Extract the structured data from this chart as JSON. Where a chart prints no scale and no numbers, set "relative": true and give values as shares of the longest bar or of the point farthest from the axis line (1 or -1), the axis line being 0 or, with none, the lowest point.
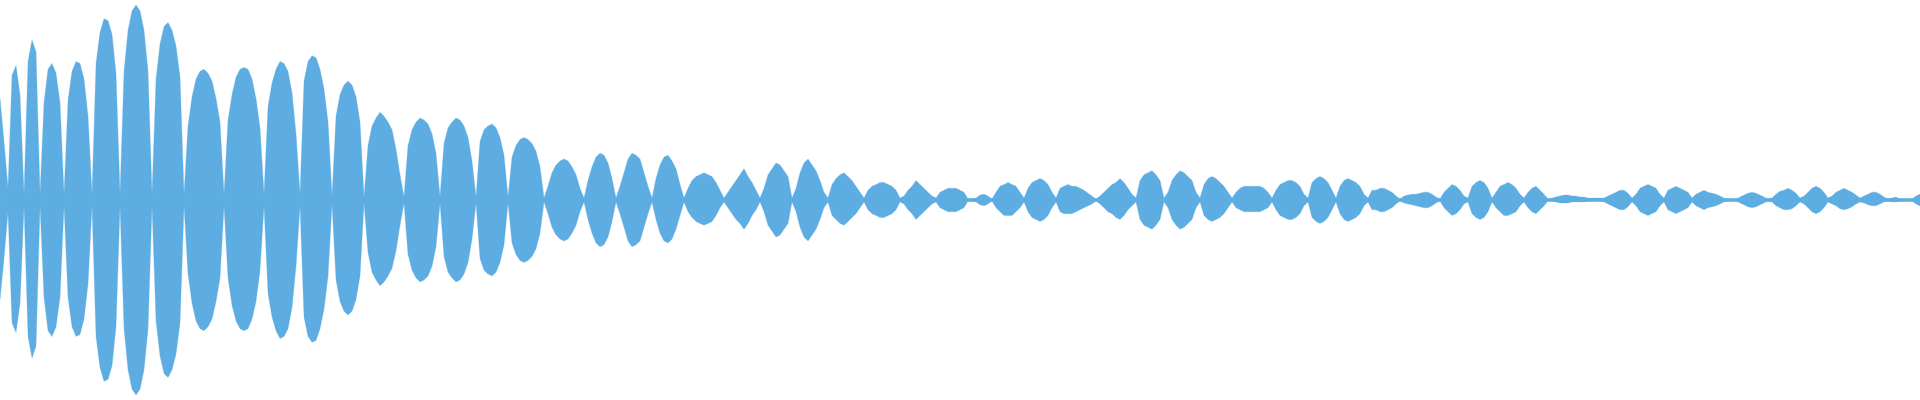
{
  "chart_data": {
    "type": "area",
    "relative": true,
    "ref_lines": [
      {
        "axis": "y",
        "value": 0,
        "color": "#5dade2"
      }
    ],
    "categories": [
      null,
      null,
      null,
      null,
      null,
      null,
      null,
      null,
      null,
      null,
      null,
      null,
      null,
      null,
      null,
      null,
      null,
      null,
      null,
      null,
      null,
      null,
      null,
      null,
      null,
      null,
      null,
      null,
      null,
      null,
      null,
      null,
      null,
      null,
      null,
      null,
      null,
      null,
      null,
      null,
      null,
      null,
      null,
      null,
      null,
      null,
      null,
      null,
      null,
      null,
      null,
      null,
      null,
      null,
      null,
      null,
      null,
      null,
      null,
      null,
      null,
      null,
      null,
      null,
      null,
      null,
      null,
      null,
      null,
      null,
      null,
      null,
      null,
      null,
      null,
      null,
      null,
      null,
      null,
      null,
      null,
      null,
      null,
      null,
      null,
      null,
      null,
      null,
      null,
      null,
      null,
      null,
      null,
      null,
      null,
      null,
      null,
      null,
      null,
      null,
      null,
      null,
      null,
      null,
      null,
      null,
      null,
      null,
      null,
      null,
      null,
      null,
      null,
      null,
      null,
      null,
      null,
      null,
      null,
      null,
      null,
      null,
      null,
      null,
      null,
      null,
      null,
      null,
      null,
      null,
      null,
      null,
      null,
      null,
      null,
      null,
      null,
      null,
      null,
      null,
      null,
      null,
      null,
      null,
      null,
      null,
      null,
      null,
      null,
      null,
      null,
      null,
      null,
      null,
      null,
      null,
      null,
      null,
      null,
      null,
      null,
      null,
      null,
      null,
      null,
      null,
      null,
      null,
      null,
      null,
      null,
      null,
      null,
      null,
      null,
      null,
      null,
      null,
      null,
      null,
      null,
      null,
      null,
      null,
      null,
      null,
      null,
      null,
      null,
      null,
      null,
      null,
      null,
      null,
      null,
      null,
      null,
      null,
      null,
      null,
      null,
      null,
      null,
      null,
      null,
      null,
      null,
      null,
      null,
      null,
      null,
      null,
      null,
      null,
      null,
      null,
      null,
      null,
      null,
      null,
      null,
      null,
      null,
      null,
      null,
      null,
      null,
      null,
      null,
      null,
      null,
      null,
      null,
      null,
      null,
      null,
      null,
      null,
      null,
      null,
      null,
      null,
      null,
      null,
      null,
      null,
      null,
      null,
      null,
      null,
      null,
      null,
      null,
      null,
      null,
      null,
      null,
      null,
      null,
      null,
      null,
      null,
      null,
      null,
      null,
      null,
      null,
      null,
      null,
      null,
      null,
      null,
      null,
      null,
      null,
      null,
      null,
      null,
      null,
      null,
      null,
      null,
      null,
      null,
      null,
      null,
      null,
      null,
      null,
      null,
      null,
      null,
      null,
      null,
      null,
      null,
      null,
      null,
      null,
      null,
      null,
      null,
      null,
      null,
      null,
      null,
      null,
      null,
      null,
      null,
      null,
      null,
      null,
      null,
      null,
      null,
      null,
      null,
      null,
      null,
      null,
      null,
      null,
      null,
      null,
      null,
      null,
      null,
      null,
      null,
      null,
      null,
      null,
      null,
      null,
      null,
      null,
      null,
      null,
      null,
      null,
      null,
      null,
      null,
      null,
      null,
      null,
      null,
      null,
      null,
      null,
      null,
      null,
      null,
      null,
      null,
      null,
      null,
      null,
      null,
      null,
      null,
      null,
      null,
      null,
      null,
      null,
      null,
      null,
      null,
      null,
      null,
      null,
      null,
      null,
      null,
      null,
      null,
      null,
      null,
      null,
      null,
      null,
      null,
      null,
      null,
      null,
      null,
      null,
      null,
      null,
      null,
      null,
      null,
      null,
      null,
      null,
      null,
      null,
      null,
      null,
      null,
      null,
      null,
      null,
      null,
      null,
      null,
      null,
      null,
      null,
      null,
      null,
      null,
      null,
      null,
      null,
      null,
      null,
      null,
      null,
      null,
      null,
      null,
      null,
      null,
      null,
      null,
      null,
      null,
      null,
      null,
      null,
      null,
      null,
      null,
      null,
      null,
      null,
      null,
      null,
      null,
      null,
      null,
      null,
      null,
      null,
      null,
      null,
      null,
      null,
      null,
      null,
      null,
      null,
      null,
      null,
      null,
      null,
      null,
      null,
      null,
      null,
      null,
      null,
      null,
      null,
      null,
      null,
      null,
      null,
      null,
      null,
      null,
      null,
      null,
      null,
      null,
      null,
      null,
      null
    ],
    "series": [
      {
        "color": "#5dade2",
        "values": [
          0.52,
          0.3,
          0.06,
          0.64,
          0.69,
          0.54,
          0.03,
          0.71,
          0.82,
          0.76,
          0.03,
          0.5,
          0.67,
          0.7,
          0.65,
          0.5,
          0.03,
          0.51,
          0.66,
          0.71,
          0.7,
          0.62,
          0.43,
          0.03,
          0.7,
          0.86,
          0.93,
          0.92,
          0.85,
          0.65,
          0.03,
          0.66,
          0.87,
          0.97,
          1.0,
          0.97,
          0.87,
          0.66,
          0.03,
          0.62,
          0.8,
          0.89,
          0.91,
          0.87,
          0.79,
          0.63,
          0.03,
          0.38,
          0.53,
          0.62,
          0.66,
          0.67,
          0.65,
          0.61,
          0.52,
          0.4,
          0.03,
          0.41,
          0.54,
          0.63,
          0.67,
          0.68,
          0.67,
          0.62,
          0.52,
          0.37,
          0.03,
          0.48,
          0.6,
          0.67,
          0.71,
          0.7,
          0.66,
          0.55,
          0.34,
          0.03,
          0.61,
          0.71,
          0.74,
          0.73,
          0.67,
          0.57,
          0.4,
          0.02,
          0.43,
          0.54,
          0.59,
          0.61,
          0.59,
          0.53,
          0.4,
          0.015,
          0.28,
          0.38,
          0.42,
          0.45,
          0.43,
          0.4,
          0.36,
          0.26,
          0.13,
          0.015,
          0.28,
          0.36,
          0.4,
          0.42,
          0.41,
          0.39,
          0.34,
          0.24,
          0.015,
          0.29,
          0.37,
          0.4,
          0.42,
          0.41,
          0.38,
          0.32,
          0.2,
          0.015,
          0.3,
          0.36,
          0.38,
          0.39,
          0.37,
          0.32,
          0.23,
          0.015,
          0.22,
          0.28,
          0.31,
          0.32,
          0.31,
          0.29,
          0.25,
          0.17,
          0.01,
          0.07,
          0.14,
          0.18,
          0.2,
          0.21,
          0.2,
          0.17,
          0.13,
          0.06,
          0.01,
          0.1,
          0.17,
          0.22,
          0.24,
          0.23,
          0.19,
          0.11,
          0.01,
          0.07,
          0.14,
          0.21,
          0.24,
          0.23,
          0.21,
          0.14,
          0.07,
          0.01,
          0.11,
          0.18,
          0.22,
          0.23,
          0.2,
          0.16,
          0.08,
          0.01,
          0.06,
          0.1,
          0.12,
          0.13,
          0.14,
          0.13,
          0.12,
          0.09,
          0.05,
          0.01,
          0.04,
          0.07,
          0.1,
          0.13,
          0.16,
          0.12,
          0.09,
          0.05,
          0.01,
          0.06,
          0.13,
          0.16,
          0.19,
          0.18,
          0.15,
          0.12,
          0.01,
          0.06,
          0.14,
          0.19,
          0.21,
          0.18,
          0.15,
          0.1,
          0.04,
          0.01,
          0.08,
          0.11,
          0.13,
          0.14,
          0.12,
          0.1,
          0.07,
          0.04,
          0.01,
          0.05,
          0.07,
          0.08,
          0.09,
          0.09,
          0.08,
          0.07,
          0.05,
          0.01,
          0.02,
          0.05,
          0.07,
          0.1,
          0.08,
          0.06,
          0.04,
          0.02,
          0.01,
          0.04,
          0.05,
          0.06,
          0.06,
          0.06,
          0.05,
          0.04,
          0.005,
          0.005,
          0.01,
          0.025,
          0.03,
          0.02,
          0.005,
          0.04,
          0.07,
          0.08,
          0.09,
          0.08,
          0.07,
          0.04,
          0.01,
          0.06,
          0.09,
          0.1,
          0.11,
          0.1,
          0.08,
          0.04,
          0.01,
          0.06,
          0.07,
          0.08,
          0.07,
          0.07,
          0.06,
          0.05,
          0.035,
          0.02,
          0.005,
          0.02,
          0.04,
          0.06,
          0.08,
          0.09,
          0.11,
          0.09,
          0.06,
          0.03,
          0.01,
          0.1,
          0.13,
          0.14,
          0.15,
          0.13,
          0.1,
          0.01,
          0.04,
          0.1,
          0.13,
          0.15,
          0.14,
          0.12,
          0.1,
          0.04,
          0.01,
          0.08,
          0.11,
          0.12,
          0.11,
          0.09,
          0.07,
          0.04,
          0.01,
          0.04,
          0.06,
          0.07,
          0.07,
          0.07,
          0.07,
          0.07,
          0.06,
          0.04,
          0.01,
          0.05,
          0.08,
          0.09,
          0.1,
          0.1,
          0.09,
          0.07,
          0.03,
          0.01,
          0.09,
          0.11,
          0.12,
          0.11,
          0.09,
          0.05,
          0.01,
          0.07,
          0.1,
          0.11,
          0.1,
          0.09,
          0.07,
          0.03,
          0.01,
          0.05,
          0.05,
          0.06,
          0.06,
          0.05,
          0.04,
          0.02,
          0.005,
          0.02,
          0.025,
          0.03,
          0.03,
          0.035,
          0.04,
          0.04,
          0.03,
          0.015,
          0.005,
          0.04,
          0.06,
          0.08,
          0.07,
          0.05,
          0.02,
          0.01,
          0.07,
          0.09,
          0.1,
          0.09,
          0.06,
          0.01,
          0.04,
          0.07,
          0.08,
          0.09,
          0.08,
          0.06,
          0.03,
          0.01,
          0.04,
          0.06,
          0.07,
          0.05,
          0.03,
          0.005,
          0.01,
          0.015,
          0.02,
          0.025,
          0.025,
          0.02,
          0.02,
          0.015,
          0.015,
          0.01,
          0.01,
          0.01,
          0.01,
          0.01,
          0.02,
          0.03,
          0.04,
          0.05,
          0.05,
          0.035,
          0.01,
          0.03,
          0.06,
          0.07,
          0.08,
          0.07,
          0.06,
          0.03,
          0.01,
          0.05,
          0.06,
          0.07,
          0.06,
          0.05,
          0.04,
          0.01,
          0.03,
          0.04,
          0.05,
          0.04,
          0.035,
          0.03,
          0.02,
          0.01,
          0.005,
          0.005,
          0.005,
          0.015,
          0.025,
          0.035,
          0.04,
          0.035,
          0.025,
          0.015,
          0.005,
          0.01,
          0.03,
          0.045,
          0.05,
          0.06,
          0.05,
          0.035,
          0.01,
          0.02,
          0.04,
          0.06,
          0.07,
          0.06,
          0.04,
          0.01,
          0.02,
          0.04,
          0.05,
          0.06,
          0.05,
          0.04,
          0.025,
          0.01,
          0.02,
          0.03,
          0.04,
          0.04,
          0.03,
          0.015,
          0.005,
          0.01,
          0.015,
          0.005,
          0.005,
          0.005,
          0.005,
          0.02,
          0.03
        ]
      },
      {
        "color": "#5dade2",
        "values": [
          -0.51,
          -0.3,
          -0.06,
          -0.63,
          -0.68,
          -0.53,
          -0.03,
          -0.7,
          -0.81,
          -0.75,
          -0.03,
          -0.5,
          -0.67,
          -0.7,
          -0.65,
          -0.5,
          -0.03,
          -0.5,
          -0.65,
          -0.7,
          -0.69,
          -0.61,
          -0.43,
          -0.03,
          -0.7,
          -0.86,
          -0.93,
          -0.92,
          -0.85,
          -0.65,
          -0.03,
          -0.66,
          -0.87,
          -0.97,
          -1.0,
          -0.97,
          -0.87,
          -0.66,
          -0.03,
          -0.62,
          -0.8,
          -0.89,
          -0.91,
          -0.87,
          -0.79,
          -0.63,
          -0.03,
          -0.38,
          -0.53,
          -0.62,
          -0.66,
          -0.67,
          -0.65,
          -0.61,
          -0.52,
          -0.4,
          -0.03,
          -0.4,
          -0.54,
          -0.62,
          -0.66,
          -0.67,
          -0.66,
          -0.61,
          -0.52,
          -0.36,
          -0.03,
          -0.48,
          -0.6,
          -0.67,
          -0.71,
          -0.7,
          -0.66,
          -0.55,
          -0.34,
          -0.03,
          -0.6,
          -0.7,
          -0.73,
          -0.72,
          -0.66,
          -0.56,
          -0.39,
          -0.02,
          -0.41,
          -0.52,
          -0.57,
          -0.59,
          -0.57,
          -0.51,
          -0.39,
          -0.015,
          -0.27,
          -0.37,
          -0.41,
          -0.44,
          -0.42,
          -0.39,
          -0.35,
          -0.26,
          -0.13,
          -0.015,
          -0.28,
          -0.36,
          -0.4,
          -0.42,
          -0.41,
          -0.39,
          -0.34,
          -0.24,
          -0.015,
          -0.29,
          -0.37,
          -0.4,
          -0.42,
          -0.41,
          -0.38,
          -0.32,
          -0.2,
          -0.015,
          -0.3,
          -0.36,
          -0.38,
          -0.39,
          -0.37,
          -0.32,
          -0.23,
          -0.015,
          -0.22,
          -0.28,
          -0.31,
          -0.32,
          -0.31,
          -0.29,
          -0.25,
          -0.17,
          -0.01,
          -0.07,
          -0.14,
          -0.18,
          -0.2,
          -0.21,
          -0.2,
          -0.17,
          -0.13,
          -0.06,
          -0.01,
          -0.1,
          -0.17,
          -0.22,
          -0.24,
          -0.23,
          -0.19,
          -0.11,
          -0.01,
          -0.07,
          -0.14,
          -0.21,
          -0.24,
          -0.23,
          -0.21,
          -0.14,
          -0.07,
          -0.01,
          -0.1,
          -0.17,
          -0.21,
          -0.22,
          -0.2,
          -0.15,
          -0.08,
          -0.01,
          -0.06,
          -0.09,
          -0.11,
          -0.12,
          -0.13,
          -0.12,
          -0.11,
          -0.08,
          -0.04,
          -0.01,
          -0.04,
          -0.07,
          -0.1,
          -0.12,
          -0.15,
          -0.12,
          -0.08,
          -0.05,
          -0.01,
          -0.06,
          -0.13,
          -0.16,
          -0.19,
          -0.18,
          -0.15,
          -0.12,
          -0.01,
          -0.06,
          -0.14,
          -0.19,
          -0.21,
          -0.18,
          -0.15,
          -0.1,
          -0.04,
          -0.01,
          -0.08,
          -0.1,
          -0.12,
          -0.13,
          -0.11,
          -0.09,
          -0.07,
          -0.04,
          -0.01,
          -0.05,
          -0.07,
          -0.08,
          -0.09,
          -0.09,
          -0.08,
          -0.07,
          -0.05,
          -0.01,
          -0.02,
          -0.05,
          -0.07,
          -0.1,
          -0.08,
          -0.06,
          -0.04,
          -0.02,
          -0.01,
          -0.04,
          -0.05,
          -0.06,
          -0.06,
          -0.06,
          -0.05,
          -0.04,
          -0.005,
          -0.005,
          -0.01,
          -0.025,
          -0.03,
          -0.02,
          -0.005,
          -0.04,
          -0.06,
          -0.08,
          -0.08,
          -0.08,
          -0.06,
          -0.04,
          -0.01,
          -0.06,
          -0.09,
          -0.1,
          -0.11,
          -0.1,
          -0.08,
          -0.04,
          -0.01,
          -0.06,
          -0.07,
          -0.07,
          -0.07,
          -0.06,
          -0.05,
          -0.04,
          -0.03,
          -0.02,
          -0.005,
          -0.02,
          -0.04,
          -0.06,
          -0.07,
          -0.09,
          -0.1,
          -0.08,
          -0.05,
          -0.03,
          -0.01,
          -0.1,
          -0.13,
          -0.14,
          -0.15,
          -0.13,
          -0.1,
          -0.01,
          -0.04,
          -0.1,
          -0.13,
          -0.15,
          -0.14,
          -0.12,
          -0.1,
          -0.04,
          -0.01,
          -0.08,
          -0.1,
          -0.11,
          -0.1,
          -0.09,
          -0.07,
          -0.04,
          -0.01,
          -0.04,
          -0.05,
          -0.06,
          -0.06,
          -0.06,
          -0.06,
          -0.06,
          -0.05,
          -0.04,
          -0.01,
          -0.05,
          -0.08,
          -0.09,
          -0.1,
          -0.1,
          -0.09,
          -0.07,
          -0.03,
          -0.01,
          -0.09,
          -0.11,
          -0.12,
          -0.11,
          -0.09,
          -0.05,
          -0.01,
          -0.07,
          -0.1,
          -0.11,
          -0.1,
          -0.09,
          -0.07,
          -0.03,
          -0.01,
          -0.05,
          -0.05,
          -0.06,
          -0.06,
          -0.05,
          -0.04,
          -0.02,
          -0.005,
          -0.015,
          -0.02,
          -0.025,
          -0.03,
          -0.035,
          -0.04,
          -0.04,
          -0.03,
          -0.015,
          -0.005,
          -0.04,
          -0.06,
          -0.08,
          -0.07,
          -0.05,
          -0.02,
          -0.01,
          -0.07,
          -0.09,
          -0.1,
          -0.09,
          -0.06,
          -0.01,
          -0.04,
          -0.06,
          -0.08,
          -0.08,
          -0.07,
          -0.06,
          -0.03,
          -0.01,
          -0.04,
          -0.06,
          -0.07,
          -0.05,
          -0.03,
          -0.005,
          -0.005,
          -0.01,
          -0.015,
          -0.015,
          -0.015,
          -0.01,
          -0.01,
          -0.01,
          -0.01,
          -0.005,
          -0.005,
          -0.005,
          -0.005,
          -0.01,
          -0.02,
          -0.03,
          -0.04,
          -0.05,
          -0.05,
          -0.035,
          -0.01,
          -0.03,
          -0.06,
          -0.07,
          -0.08,
          -0.07,
          -0.06,
          -0.03,
          -0.01,
          -0.05,
          -0.06,
          -0.07,
          -0.06,
          -0.05,
          -0.04,
          -0.01,
          -0.03,
          -0.04,
          -0.05,
          -0.04,
          -0.035,
          -0.03,
          -0.02,
          -0.01,
          -0.005,
          -0.005,
          -0.005,
          -0.015,
          -0.025,
          -0.035,
          -0.04,
          -0.035,
          -0.025,
          -0.015,
          -0.005,
          -0.01,
          -0.03,
          -0.04,
          -0.05,
          -0.05,
          -0.045,
          -0.03,
          -0.01,
          -0.02,
          -0.04,
          -0.06,
          -0.07,
          -0.06,
          -0.04,
          -0.01,
          -0.02,
          -0.03,
          -0.045,
          -0.05,
          -0.045,
          -0.035,
          -0.02,
          -0.01,
          -0.015,
          -0.025,
          -0.03,
          -0.03,
          -0.02,
          -0.01,
          -0.005,
          -0.01,
          -0.01,
          -0.005,
          -0.005,
          -0.005,
          -0.005,
          -0.02,
          -0.03
        ]
      }
    ]
  }
}
